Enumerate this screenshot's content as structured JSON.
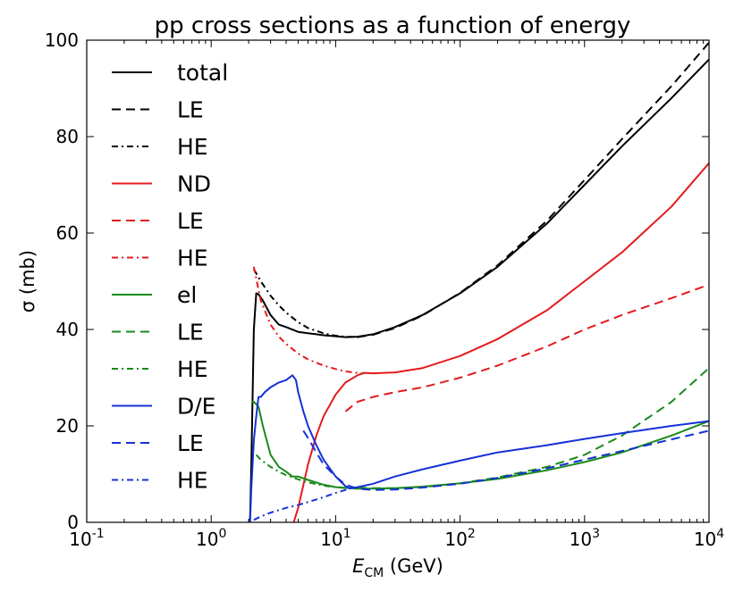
{
  "chart_data": {
    "type": "line",
    "title": "pp cross sections as a function of energy",
    "xlabel": "E_CM (GeV)",
    "xlabel_main": "E",
    "xlabel_sub": "CM",
    "xlabel_unit": " (GeV)",
    "ylabel": "σ (mb)",
    "xscale": "log",
    "xlim": [
      0.1,
      10000
    ],
    "ylim": [
      0,
      100
    ],
    "x_ticks": [
      {
        "base": "10",
        "exp": "-1",
        "value": 0.1
      },
      {
        "base": "10",
        "exp": "0",
        "value": 1
      },
      {
        "base": "10",
        "exp": "1",
        "value": 10
      },
      {
        "base": "10",
        "exp": "2",
        "value": 100
      },
      {
        "base": "10",
        "exp": "3",
        "value": 1000
      },
      {
        "base": "10",
        "exp": "4",
        "value": 10000
      }
    ],
    "y_ticks": [
      "0",
      "20",
      "40",
      "60",
      "80",
      "100"
    ],
    "legend_position": "top-left",
    "series": [
      {
        "name": "total",
        "color": "#000000",
        "style": "solid",
        "x": [
          2.05,
          2.1,
          2.2,
          2.3,
          2.4,
          2.6,
          3.0,
          3.5,
          4.0,
          5.0,
          6.0,
          7.0,
          8.0,
          10,
          12,
          15,
          20,
          30,
          50,
          100,
          200,
          500,
          1000,
          2000,
          5000,
          10000
        ],
        "y": [
          0,
          12,
          40,
          47.5,
          47.3,
          46,
          43,
          41,
          40.5,
          39.5,
          39.2,
          39,
          38.8,
          38.6,
          38.4,
          38.5,
          39,
          40.5,
          43,
          47.5,
          53,
          62,
          70,
          78,
          88,
          96
        ]
      },
      {
        "name": "LE",
        "color": "#000000",
        "style": "dashed",
        "x": [
          15,
          20,
          30,
          50,
          100,
          200,
          500,
          1000,
          2000,
          5000,
          10000
        ],
        "y": [
          38.4,
          38.9,
          40.3,
          42.9,
          47.6,
          53.3,
          62.6,
          71,
          79.5,
          90.5,
          99.5
        ]
      },
      {
        "name": "HE",
        "color": "#000000",
        "style": "dashdot",
        "x": [
          2.2,
          2.5,
          3.0,
          3.5,
          4.0,
          5.0,
          6.0,
          8.0,
          10,
          12,
          15
        ],
        "y": [
          52.5,
          50,
          47,
          45,
          43.5,
          41.5,
          40.3,
          39.2,
          38.7,
          38.5,
          38.4
        ]
      },
      {
        "name": "ND",
        "color": "#e41a1c",
        "style": "solid",
        "x": [
          4.6,
          5.0,
          6.0,
          7.0,
          8.0,
          10,
          12,
          15,
          17,
          20,
          30,
          50,
          100,
          200,
          500,
          1000,
          2000,
          5000,
          10000
        ],
        "y": [
          0,
          3,
          12,
          18,
          22,
          26.5,
          29,
          30.5,
          31,
          30.9,
          31.1,
          32,
          34.5,
          38,
          44,
          50,
          56,
          65.5,
          74.5
        ]
      },
      {
        "name": "LE",
        "color": "#e41a1c",
        "style": "dashed",
        "x": [
          12,
          15,
          20,
          30,
          50,
          100,
          200,
          500,
          1000,
          2000,
          5000,
          10000
        ],
        "y": [
          23,
          25,
          26,
          27,
          28,
          30,
          32.5,
          36.5,
          40,
          43,
          46.5,
          49.3
        ]
      },
      {
        "name": "HE",
        "color": "#e41a1c",
        "style": "dashdot",
        "x": [
          2.2,
          2.5,
          3.0,
          3.5,
          4.0,
          5.0,
          6.0,
          8.0,
          10,
          12,
          15,
          17
        ],
        "y": [
          53,
          46,
          41,
          38.5,
          37,
          35,
          33.8,
          32.5,
          31.8,
          31.3,
          31,
          30.9
        ]
      },
      {
        "name": "el",
        "color": "#1a8a1a",
        "style": "solid",
        "x": [
          2.1,
          2.2,
          2.4,
          2.6,
          3.0,
          3.5,
          4.0,
          4.5,
          5.0,
          6.0,
          8.0,
          10,
          15,
          20,
          30,
          50,
          100,
          200,
          500,
          1000,
          2000,
          5000,
          10000
        ],
        "y": [
          25,
          25,
          24,
          20,
          14,
          11.5,
          10.5,
          9.5,
          9.5,
          8.8,
          7.8,
          7.3,
          7.0,
          7.0,
          7.1,
          7.4,
          8.1,
          9.0,
          10.8,
          12.5,
          14.5,
          18,
          21
        ]
      },
      {
        "name": "LE",
        "color": "#1a8a1a",
        "style": "dashed",
        "x": [
          15,
          20,
          30,
          50,
          100,
          200,
          500,
          1000,
          2000,
          5000,
          10000
        ],
        "y": [
          7.2,
          7.1,
          7.1,
          7.3,
          8.1,
          9.3,
          11.5,
          14,
          18,
          25,
          32
        ]
      },
      {
        "name": "HE",
        "color": "#1a8a1a",
        "style": "dashdot",
        "x": [
          2.3,
          2.5,
          3.0,
          3.5,
          4.0,
          5.0,
          6.0,
          8.0,
          10,
          12,
          15
        ],
        "y": [
          14,
          13,
          11.5,
          10.5,
          9.8,
          8.9,
          8.3,
          7.6,
          7.3,
          7.1,
          7.0
        ]
      },
      {
        "name": "D/E",
        "color": "#1531d6",
        "style": "solid",
        "x": [
          2.05,
          2.1,
          2.2,
          2.3,
          2.4,
          2.5,
          2.7,
          3.0,
          3.5,
          4.0,
          4.5,
          4.8,
          5.0,
          5.5,
          6.0,
          7.0,
          8.0,
          10,
          12,
          13,
          15,
          20,
          30,
          50,
          100,
          200,
          500,
          1000,
          2000,
          5000,
          10000
        ],
        "y": [
          0,
          7,
          17,
          22,
          26,
          26,
          27,
          28,
          29,
          29.5,
          30.5,
          29.5,
          27,
          23,
          20,
          16,
          13,
          9.5,
          7.5,
          7.0,
          7.3,
          8.0,
          9.5,
          11,
          12.8,
          14.5,
          16,
          17.3,
          18.5,
          20,
          21
        ]
      },
      {
        "name": "LE",
        "color": "#1531d6",
        "style": "dashed",
        "x": [
          5.5,
          6.0,
          7.0,
          8.0,
          10,
          12,
          15,
          20,
          30,
          50,
          100,
          200,
          500,
          1000,
          2000,
          5000,
          10000
        ],
        "y": [
          19,
          17.5,
          14.5,
          12,
          9.5,
          7.8,
          7.0,
          6.7,
          6.8,
          7.2,
          8.0,
          9.2,
          11.2,
          13,
          14.8,
          17.2,
          19
        ]
      },
      {
        "name": "HE",
        "color": "#1531d6",
        "style": "dashdot",
        "x": [
          2.2,
          2.5,
          3.0,
          4.0,
          5.0,
          6.0,
          8.0,
          10,
          13
        ],
        "y": [
          0.5,
          1.2,
          2.0,
          3.0,
          3.6,
          4.2,
          5.2,
          6.1,
          7.0
        ]
      }
    ]
  }
}
